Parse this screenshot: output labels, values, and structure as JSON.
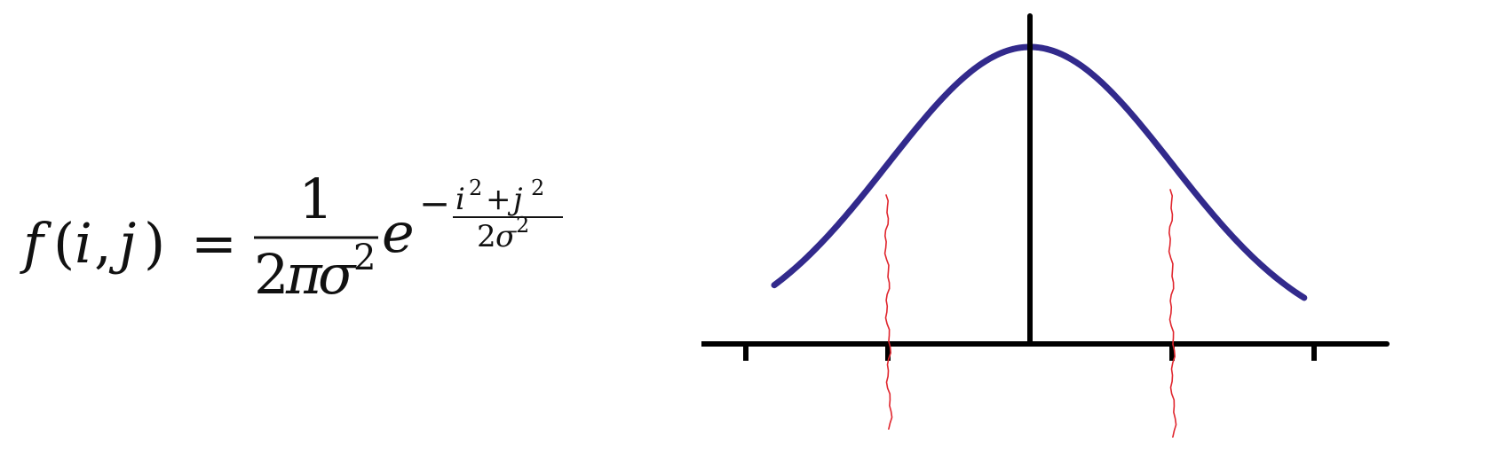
{
  "formula": {
    "lhs_f": "f",
    "lhs_open": "(",
    "lhs_i": "i",
    "lhs_comma": ",",
    "lhs_j": "j",
    "lhs_close": ")",
    "equals": "=",
    "frac_num": "1",
    "frac_den_2": "2",
    "frac_den_pi": "π",
    "frac_den_sigma": "σ",
    "frac_den_exp": "2",
    "e": "e",
    "exp_minus": "−",
    "exp_num_i": "i",
    "exp_num_i_pow": "2",
    "exp_num_plus": "+",
    "exp_num_j": "j",
    "exp_num_j_pow": "2",
    "exp_den_2": "2",
    "exp_den_sigma": "σ",
    "exp_den_pow": "2"
  },
  "diagram": {
    "curve_color": "#322a8c",
    "axis_color": "#000000",
    "marker_color": "#e0262e",
    "ticks_x": [
      -2,
      -1,
      1,
      2
    ],
    "markers_x": [
      -1,
      1
    ],
    "curve_peak": 1.0,
    "curve_sigma": 1.0,
    "curve_range": [
      -1.8,
      1.93
    ]
  }
}
